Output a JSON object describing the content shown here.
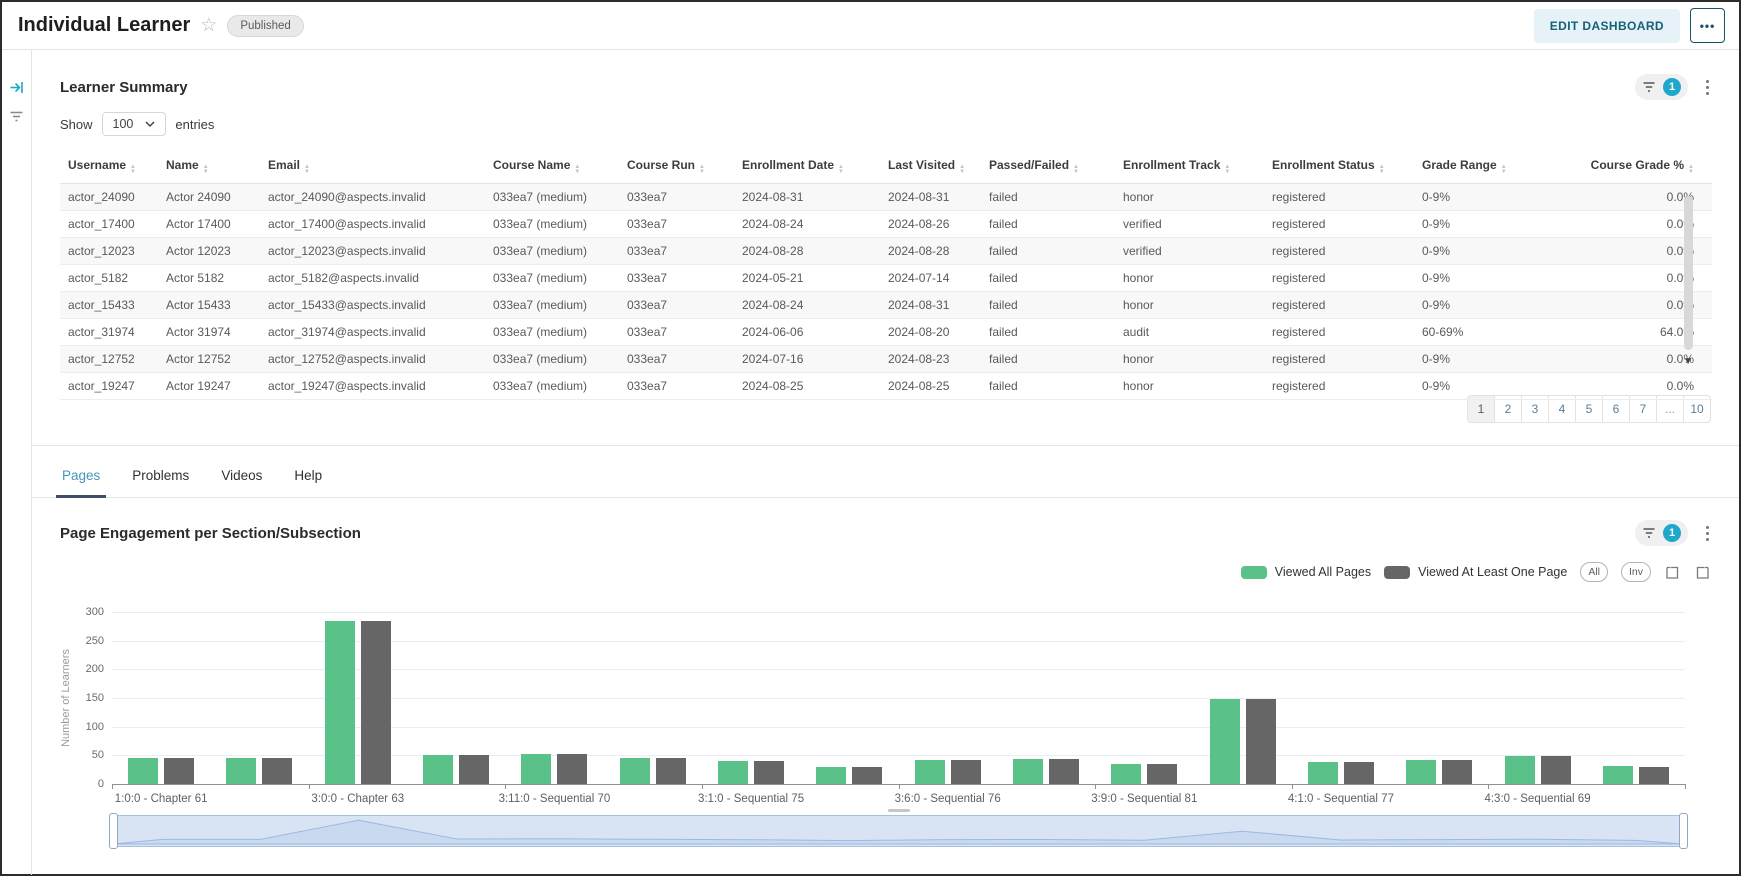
{
  "colors": {
    "primary": "#1fa8c9",
    "green": "#5ac189",
    "dark_gray": "#666666",
    "tab_active": "#4796ba"
  },
  "header": {
    "title": "Individual Learner",
    "status_badge": "Published",
    "edit_button": "EDIT DASHBOARD",
    "more_button": "•••"
  },
  "learner_summary": {
    "title": "Learner Summary",
    "filter_badge": "1",
    "show_label": "Show",
    "page_size": "100",
    "entries_label": "entries",
    "columns": [
      "Username",
      "Name",
      "Email",
      "Course Name",
      "Course Run",
      "Enrollment Date",
      "Last Visited",
      "Passed/Failed",
      "Enrollment Track",
      "Enrollment Status",
      "Grade Range",
      "Course Grade %"
    ],
    "rows": [
      [
        "actor_24090",
        "Actor 24090",
        "actor_24090@aspects.invalid",
        "033ea7 (medium)",
        "033ea7",
        "2024-08-31",
        "2024-08-31",
        "failed",
        "honor",
        "registered",
        "0-9%",
        "0.0%"
      ],
      [
        "actor_17400",
        "Actor 17400",
        "actor_17400@aspects.invalid",
        "033ea7 (medium)",
        "033ea7",
        "2024-08-24",
        "2024-08-26",
        "failed",
        "verified",
        "registered",
        "0-9%",
        "0.0%"
      ],
      [
        "actor_12023",
        "Actor 12023",
        "actor_12023@aspects.invalid",
        "033ea7 (medium)",
        "033ea7",
        "2024-08-28",
        "2024-08-28",
        "failed",
        "verified",
        "registered",
        "0-9%",
        "0.0%"
      ],
      [
        "actor_5182",
        "Actor 5182",
        "actor_5182@aspects.invalid",
        "033ea7 (medium)",
        "033ea7",
        "2024-05-21",
        "2024-07-14",
        "failed",
        "honor",
        "registered",
        "0-9%",
        "0.0%"
      ],
      [
        "actor_15433",
        "Actor 15433",
        "actor_15433@aspects.invalid",
        "033ea7 (medium)",
        "033ea7",
        "2024-08-24",
        "2024-08-31",
        "failed",
        "honor",
        "registered",
        "0-9%",
        "0.0%"
      ],
      [
        "actor_31974",
        "Actor 31974",
        "actor_31974@aspects.invalid",
        "033ea7 (medium)",
        "033ea7",
        "2024-06-06",
        "2024-08-20",
        "failed",
        "audit",
        "registered",
        "60-69%",
        "64.0%"
      ],
      [
        "actor_12752",
        "Actor 12752",
        "actor_12752@aspects.invalid",
        "033ea7 (medium)",
        "033ea7",
        "2024-07-16",
        "2024-08-23",
        "failed",
        "honor",
        "registered",
        "0-9%",
        "0.0%"
      ],
      [
        "actor_19247",
        "Actor 19247",
        "actor_19247@aspects.invalid",
        "033ea7 (medium)",
        "033ea7",
        "2024-08-25",
        "2024-08-25",
        "failed",
        "honor",
        "registered",
        "0-9%",
        "0.0%"
      ]
    ],
    "pagination": [
      "1",
      "2",
      "3",
      "4",
      "5",
      "6",
      "7",
      "...",
      "10"
    ]
  },
  "tabs": [
    {
      "label": "Pages",
      "active": true
    },
    {
      "label": "Problems",
      "active": false
    },
    {
      "label": "Videos",
      "active": false
    },
    {
      "label": "Help",
      "active": false
    }
  ],
  "chart_section": {
    "title": "Page Engagement per Section/Subsection",
    "filter_badge": "1",
    "all_button": "All",
    "inv_button": "Inv"
  },
  "chart_data": {
    "type": "bar",
    "title": "Page Engagement per Section/Subsection",
    "ylabel": "Number of Learners",
    "ylim": [
      0,
      300
    ],
    "ytick_step": 50,
    "grid": true,
    "legend_position": "top-right",
    "group_count": 16,
    "label_every_n_groups": 2,
    "visible_category_labels": [
      "1:0:0 - Chapter 61",
      "3:0:0 - Chapter 63",
      "3:11:0 - Sequential 70",
      "3:1:0 - Sequential 75",
      "3:6:0 - Sequential 76",
      "3:9:0 - Sequential 81",
      "4:1:0 - Sequential 77",
      "4:3:0 - Sequential 69"
    ],
    "series": [
      {
        "name": "Viewed All Pages",
        "color": "#5ac189",
        "values": [
          45,
          45,
          285,
          50,
          52,
          46,
          41,
          30,
          42,
          44,
          35,
          148,
          38,
          42,
          48,
          32
        ]
      },
      {
        "name": "Viewed At Least One Page",
        "color": "#666666",
        "values": [
          45,
          45,
          285,
          50,
          52,
          46,
          41,
          30,
          42,
          44,
          35,
          148,
          38,
          42,
          48,
          30
        ]
      }
    ]
  }
}
